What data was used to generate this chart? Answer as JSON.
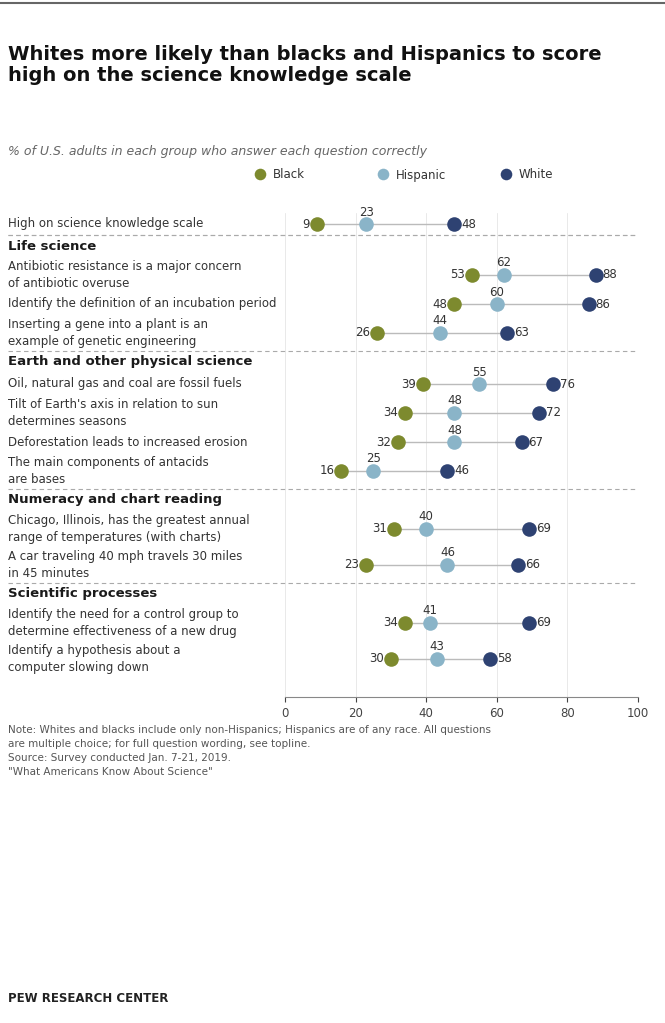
{
  "title": "Whites more likely than blacks and Hispanics to score\nhigh on the science knowledge scale",
  "subtitle": "% of U.S. adults in each group who answer each question correctly",
  "colors": {
    "black": "#7d8a2e",
    "hispanic": "#8ab4c8",
    "white": "#2e4272"
  },
  "sections": [
    {
      "header": null,
      "items": [
        {
          "label": "High on science knowledge scale",
          "label2": "",
          "black": 9,
          "hispanic": 23,
          "white": 48
        }
      ]
    },
    {
      "header": "Life science",
      "items": [
        {
          "label": "Antibiotic resistance is a major concern",
          "label2": "of antibiotic overuse",
          "black": 53,
          "hispanic": 62,
          "white": 88
        },
        {
          "label": "Identify the definition of an incubation period",
          "label2": "",
          "black": 48,
          "hispanic": 60,
          "white": 86
        },
        {
          "label": "Inserting a gene into a plant is an",
          "label2": "example of genetic engineering",
          "black": 26,
          "hispanic": 44,
          "white": 63
        }
      ]
    },
    {
      "header": "Earth and other physical science",
      "items": [
        {
          "label": "Oil, natural gas and coal are fossil fuels",
          "label2": "",
          "black": 39,
          "hispanic": 55,
          "white": 76
        },
        {
          "label": "Tilt of Earth's axis in relation to sun",
          "label2": "determines seasons",
          "black": 34,
          "hispanic": 48,
          "white": 72
        },
        {
          "label": "Deforestation leads to increased erosion",
          "label2": "",
          "black": 32,
          "hispanic": 48,
          "white": 67
        },
        {
          "label": "The main components of antacids",
          "label2": "are bases",
          "black": 16,
          "hispanic": 25,
          "white": 46
        }
      ]
    },
    {
      "header": "Numeracy and chart reading",
      "items": [
        {
          "label": "Chicago, Illinois, has the greatest annual",
          "label2": "range of temperatures (with charts)",
          "black": 31,
          "hispanic": 40,
          "white": 69
        },
        {
          "label": "A car traveling 40 mph travels 30 miles",
          "label2": "in 45 minutes",
          "black": 23,
          "hispanic": 46,
          "white": 66
        }
      ]
    },
    {
      "header": "Scientific processes",
      "items": [
        {
          "label": "Identify the need for a control group to",
          "label2": "determine effectiveness of a new drug",
          "black": 34,
          "hispanic": 41,
          "white": 69
        },
        {
          "label": "Identify a hypothesis about a",
          "label2": "computer slowing down",
          "black": 30,
          "hispanic": 43,
          "white": 58
        }
      ]
    }
  ],
  "note1": "Note: Whites and blacks include only non-Hispanics; Hispanics are of any race. All questions",
  "note2": "are multiple choice; for full question wording, see topline.",
  "note3": "Source: Survey conducted Jan. 7-21, 2019.",
  "note4": "\"What Americans Know About Science\"",
  "source": "PEW RESEARCH CENTER",
  "xlim": [
    0,
    100
  ],
  "xticks": [
    0,
    20,
    40,
    60,
    80,
    100
  ]
}
